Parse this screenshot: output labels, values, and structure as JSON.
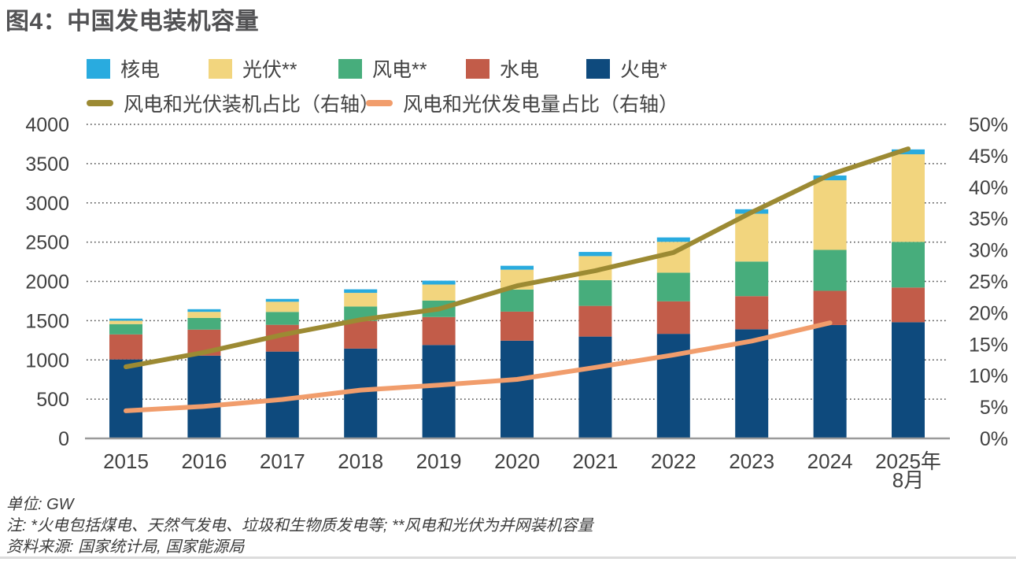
{
  "title": "图4：中国发电装机容量",
  "footnotes": {
    "unit": "单位: GW",
    "note": "注: *火电包括煤电、天然气发电、垃圾和生物质发电等; **风电和光伏为并网装机容量",
    "source": "资料来源: 国家统计局, 国家能源局"
  },
  "chart_data": {
    "type": "bar",
    "stacked": true,
    "title": "图4：中国发电装机容量",
    "unit": "GW",
    "grid": "horizontal-dotted",
    "legend_position": "top",
    "categories": [
      "2015",
      "2016",
      "2017",
      "2018",
      "2019",
      "2020",
      "2021",
      "2022",
      "2023",
      "2024",
      "2025年8月"
    ],
    "xtick_lines": [
      [
        "2015"
      ],
      [
        "2016"
      ],
      [
        "2017"
      ],
      [
        "2018"
      ],
      [
        "2019"
      ],
      [
        "2020"
      ],
      [
        "2021"
      ],
      [
        "2022"
      ],
      [
        "2023"
      ],
      [
        "2024"
      ],
      [
        "2025年",
        "8月"
      ]
    ],
    "bar_series": [
      {
        "name": "火电*",
        "color": "#0E4A7D",
        "values": [
          1006,
          1054,
          1106,
          1144,
          1190,
          1245,
          1297,
          1332,
          1390,
          1444,
          1480
        ]
      },
      {
        "name": "水电",
        "color": "#C25C49",
        "values": [
          319,
          332,
          341,
          352,
          356,
          370,
          391,
          414,
          422,
          436,
          442
        ]
      },
      {
        "name": "风电**",
        "color": "#47AD7C",
        "values": [
          131,
          149,
          164,
          184,
          210,
          281,
          328,
          365,
          441,
          521,
          581
        ]
      },
      {
        "name": "光伏**",
        "color": "#F2D57E",
        "values": [
          43,
          77,
          130,
          174,
          204,
          253,
          306,
          393,
          609,
          887,
          1116
        ]
      },
      {
        "name": "核电",
        "color": "#29ABDF",
        "values": [
          27,
          34,
          36,
          45,
          49,
          50,
          53,
          56,
          57,
          61,
          62
        ]
      }
    ],
    "line_series": [
      {
        "name": "风电和光伏装机占比（右轴）",
        "axis": "right",
        "color": "#9C8A33",
        "values": [
          11.4,
          13.7,
          16.5,
          18.9,
          20.6,
          24.3,
          26.7,
          29.6,
          36.0,
          42.0,
          46.1
        ]
      },
      {
        "name": "风电和光伏发电量占比（右轴）",
        "axis": "right",
        "color": "#F19D6C",
        "values": [
          4.4,
          5.1,
          6.2,
          7.7,
          8.5,
          9.4,
          11.3,
          13.3,
          15.5,
          18.4
        ]
      }
    ],
    "left_axis": {
      "min": 0,
      "max": 4000,
      "step": 500,
      "ticks": [
        "0",
        "500",
        "1000",
        "1500",
        "2000",
        "2500",
        "3000",
        "3500",
        "4000"
      ]
    },
    "right_axis": {
      "min": 0,
      "max": 50,
      "step": 5,
      "format": "percent",
      "ticks": [
        "0%",
        "5%",
        "10%",
        "15%",
        "20%",
        "25%",
        "30%",
        "35%",
        "40%",
        "45%",
        "50%"
      ]
    }
  }
}
